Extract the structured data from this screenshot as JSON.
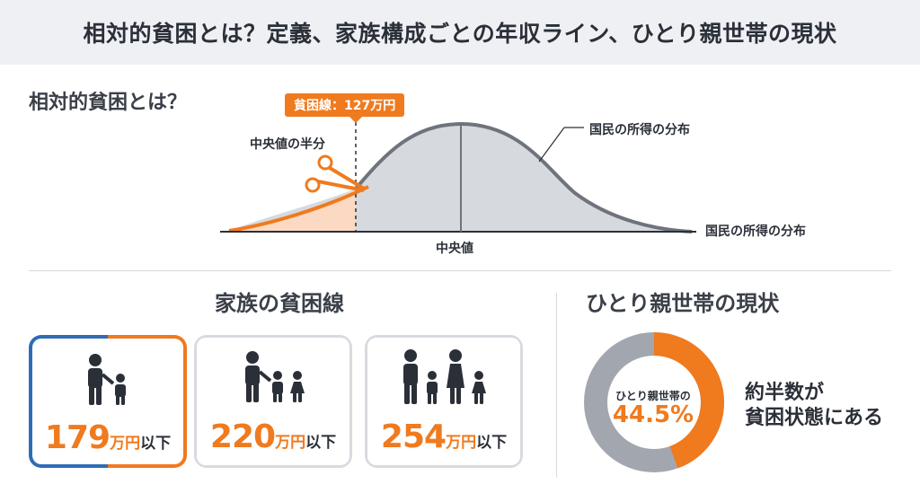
{
  "header": {
    "title": "相対的貧困とは？定義、家族構成ごとの年収ライン、ひとり親世帯の現状"
  },
  "relative": {
    "title": "相対的貧困とは？",
    "poverty_line_label": "貧困線：127万円",
    "half_median_label": "中央値の半分",
    "median_label": "中央値",
    "distribution_label_top": "国民の所得の分布",
    "distribution_label_axis": "国民の所得の分布"
  },
  "family": {
    "title": "家族の貧困線",
    "cards": [
      {
        "amount": "179",
        "unit": "万円",
        "suffix": "以下",
        "icon": "parent-one-child-icon"
      },
      {
        "amount": "220",
        "unit": "万円",
        "suffix": "以下",
        "icon": "parent-two-children-icon"
      },
      {
        "amount": "254",
        "unit": "万円",
        "suffix": "以下",
        "icon": "two-parents-two-children-icon"
      }
    ]
  },
  "single": {
    "title": "ひとり親世帯の現状",
    "donut_label": "ひとり親世帯の",
    "donut_value": "44.5%",
    "donut_fraction": 0.445,
    "text_line1": "約半数が",
    "text_line2": "貧困状態にある"
  },
  "colors": {
    "accent": "#f07a1e",
    "blue": "#2e6db5",
    "gray": "#a2a7af",
    "dark": "#2b2f38"
  }
}
